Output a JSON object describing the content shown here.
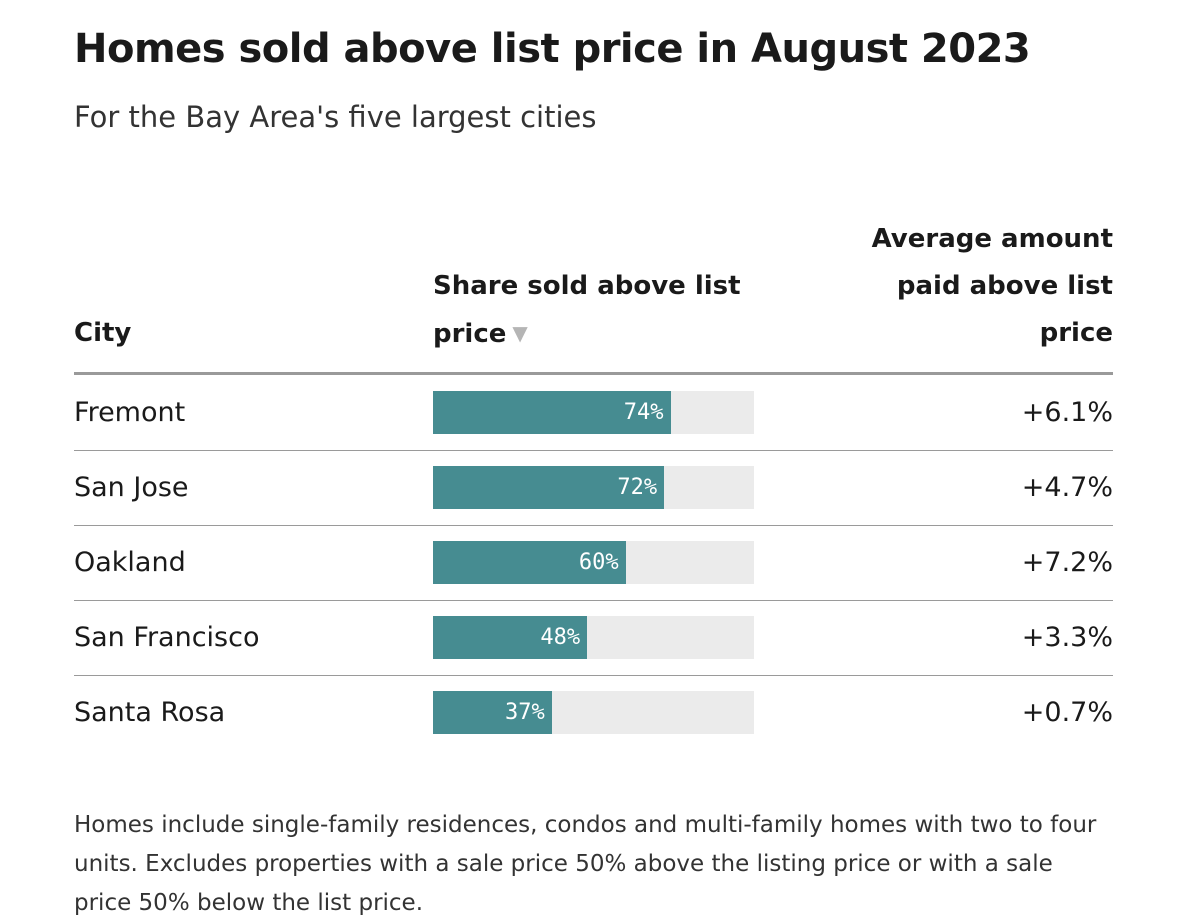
{
  "title": "Homes sold above list price in August 2023",
  "subtitle": "For the Bay Area's five largest cities",
  "headers": {
    "city": "City",
    "share": "Share sold above list price",
    "sort_icon": "▼",
    "avg": "Average amount paid above list price"
  },
  "colors": {
    "bar": "#468c91",
    "track": "#ebebeb",
    "rule": "#9a9a9a"
  },
  "chart_data": {
    "type": "table",
    "title": "Homes sold above list price in August 2023",
    "subtitle": "For the Bay Area's five largest cities",
    "columns": [
      "City",
      "Share sold above list price",
      "Average amount paid above list price"
    ],
    "categories": [
      "Fremont",
      "San Jose",
      "Oakland",
      "San Francisco",
      "Santa Rosa"
    ],
    "share_values": [
      74,
      72,
      60,
      48,
      37
    ],
    "share_labels": [
      "74%",
      "72%",
      "60%",
      "48%",
      "37%"
    ],
    "avg_labels": [
      "+6.1%",
      "+4.7%",
      "+7.2%",
      "+3.3%",
      "+0.7%"
    ],
    "bar_range": [
      0,
      100
    ],
    "sorted_by": "Share sold above list price",
    "sort_direction": "descending"
  },
  "footnote": "Homes include single-family residences, condos and multi-family homes with two to four units. Excludes properties with a sale price 50% above the listing price or with a sale price 50% below the list price."
}
